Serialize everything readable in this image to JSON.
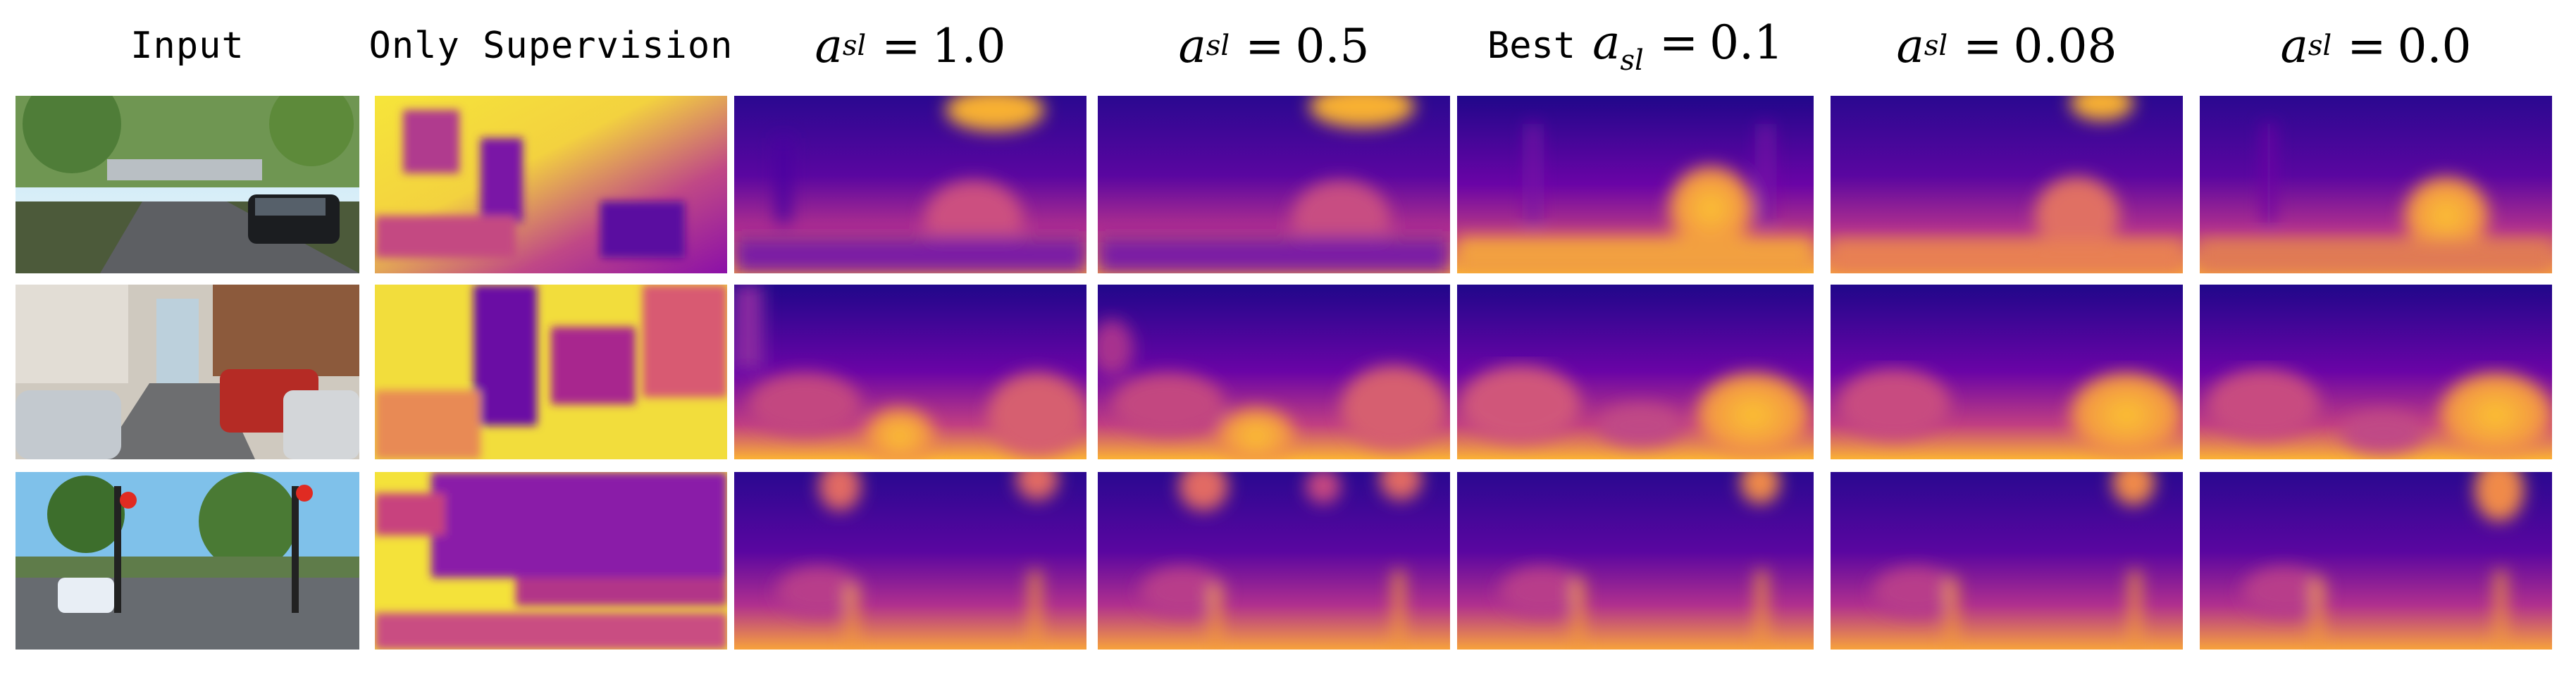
{
  "columns": [
    {
      "id": "input",
      "label": "Input"
    },
    {
      "id": "only-supervision",
      "label": "Only Supervision"
    },
    {
      "id": "asl-1-0",
      "symbol": "a",
      "subscript": "sl",
      "equals": "=",
      "value": "1.0"
    },
    {
      "id": "asl-0-5",
      "symbol": "a",
      "subscript": "sl",
      "equals": "=",
      "value": "0.5"
    },
    {
      "id": "asl-0-1",
      "prefix": "Best",
      "symbol": "a",
      "subscript": "sl",
      "equals": "=",
      "value": "0.1"
    },
    {
      "id": "asl-0-08",
      "symbol": "a",
      "subscript": "sl",
      "equals": "=",
      "value": "0.08"
    },
    {
      "id": "asl-0-0",
      "symbol": "a",
      "subscript": "sl",
      "equals": "=",
      "value": "0.0"
    }
  ],
  "rows": 3,
  "colors": {
    "depth_dark": "#0d0887",
    "depth_mid": "#7e03a8",
    "depth_pink": "#cc4778",
    "depth_orange": "#f89540",
    "depth_yellow": "#f0f921"
  }
}
